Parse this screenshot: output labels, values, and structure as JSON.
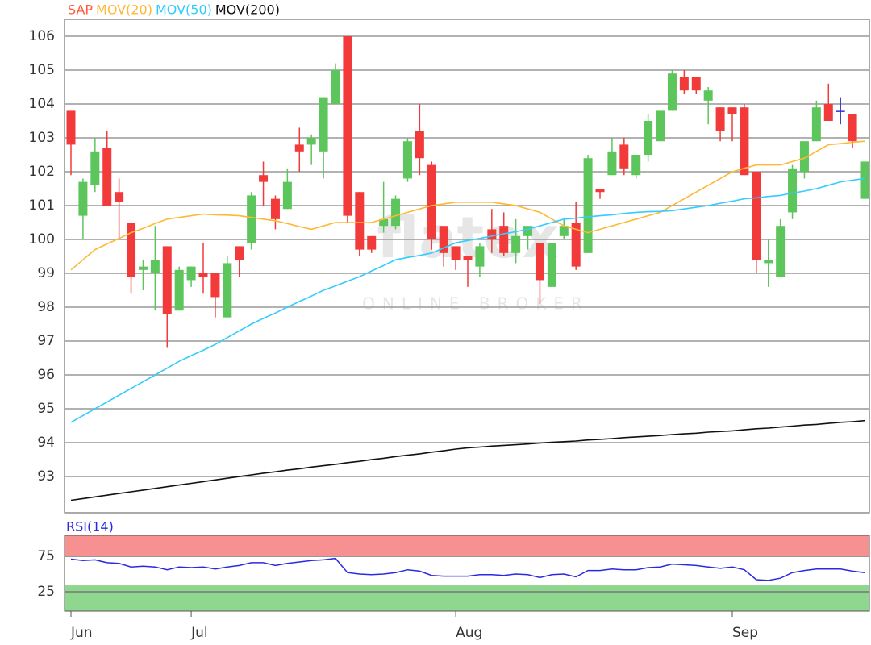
{
  "chart_data": [
    {
      "type": "candlestick",
      "watermark": {
        "logo": "flatex",
        "tagline": "ONLINE BROKER"
      },
      "up_color": "#5cc65c",
      "down_color": "#f23a3a",
      "flat_color": "#3333cc",
      "ylim": [
        91.93,
        106.5
      ],
      "yticks": [
        93,
        94,
        95,
        96,
        97,
        98,
        99,
        100,
        101,
        102,
        103,
        104,
        105,
        106
      ],
      "grid": true,
      "series": [
        {
          "name": "SAP",
          "type": "candlestick",
          "color": "#ff5a3c",
          "open": [
            103.8,
            100.7,
            101.6,
            102.7,
            101.4,
            100.5,
            99.1,
            99.0,
            99.8,
            97.9,
            98.8,
            99.0,
            99.0,
            97.7,
            99.8,
            99.9,
            101.9,
            101.2,
            100.9,
            102.8,
            102.8,
            102.6,
            104.0,
            106.0,
            101.4,
            100.1,
            100.4,
            100.4,
            101.8,
            103.2,
            102.2,
            100.4,
            99.8,
            99.5,
            99.2,
            100.3,
            100.4,
            99.6,
            100.1,
            99.9,
            98.6,
            100.1,
            100.5,
            99.6,
            101.5,
            101.9,
            102.8,
            101.9,
            102.5,
            102.9,
            103.8,
            104.8,
            104.8,
            104.1,
            103.9,
            103.9,
            103.9,
            102.0,
            99.3,
            98.9,
            100.8,
            102.0,
            102.9,
            104.0,
            103.8,
            103.7,
            101.2
          ],
          "high": [
            103.8,
            101.8,
            103.0,
            103.2,
            101.8,
            100.5,
            99.4,
            100.4,
            99.8,
            99.2,
            99.2,
            99.9,
            99.0,
            99.5,
            99.8,
            101.4,
            102.3,
            101.3,
            102.1,
            103.3,
            103.1,
            104.2,
            105.2,
            106.0,
            101.4,
            100.1,
            101.7,
            101.3,
            103.0,
            104.0,
            102.3,
            100.4,
            99.8,
            99.5,
            99.9,
            100.9,
            100.8,
            100.6,
            100.4,
            99.9,
            99.9,
            100.6,
            101.1,
            102.5,
            101.5,
            103.0,
            103.0,
            102.5,
            103.7,
            103.8,
            105.0,
            105.0,
            104.8,
            104.5,
            103.9,
            103.9,
            104.0,
            102.0,
            100.0,
            100.6,
            102.2,
            102.9,
            104.1,
            104.6,
            104.2,
            103.7,
            102.3
          ],
          "low": [
            101.9,
            100.0,
            101.4,
            101.0,
            100.0,
            98.4,
            98.5,
            97.9,
            96.8,
            97.9,
            98.6,
            98.4,
            97.7,
            97.7,
            98.9,
            99.7,
            101.0,
            100.3,
            100.9,
            102.0,
            102.2,
            101.8,
            104.0,
            100.5,
            99.5,
            99.6,
            100.2,
            100.3,
            101.7,
            101.9,
            99.7,
            99.2,
            99.1,
            98.6,
            98.9,
            99.6,
            99.5,
            99.3,
            99.7,
            98.1,
            98.6,
            100.0,
            99.1,
            99.6,
            101.2,
            101.9,
            101.9,
            101.8,
            102.3,
            102.9,
            103.8,
            104.3,
            104.3,
            103.4,
            102.9,
            102.9,
            101.9,
            99.0,
            98.6,
            98.9,
            100.6,
            101.8,
            102.9,
            103.5,
            103.4,
            102.7,
            101.2
          ],
          "close": [
            102.8,
            101.7,
            102.6,
            101.0,
            101.1,
            98.9,
            99.2,
            99.4,
            97.8,
            99.1,
            99.2,
            98.9,
            98.3,
            99.3,
            99.4,
            101.3,
            101.7,
            100.6,
            101.7,
            102.6,
            103.0,
            104.2,
            105.0,
            100.7,
            99.7,
            99.7,
            100.6,
            101.2,
            102.9,
            102.4,
            100.0,
            99.6,
            99.4,
            99.4,
            99.8,
            100.0,
            99.6,
            100.1,
            100.4,
            98.8,
            99.9,
            100.4,
            99.2,
            102.4,
            101.4,
            102.6,
            102.1,
            102.5,
            103.5,
            103.8,
            104.9,
            104.4,
            104.4,
            104.4,
            103.2,
            103.7,
            101.9,
            99.4,
            99.4,
            100.4,
            102.1,
            102.9,
            103.9,
            103.5,
            103.8,
            102.9,
            102.3
          ]
        },
        {
          "name": "MOV(20)",
          "color": "#ffb833",
          "values": [
            99.1,
            99.4,
            99.7,
            99.87,
            100.03,
            100.2,
            100.33,
            100.47,
            100.6,
            100.65,
            100.7,
            100.75,
            100.73,
            100.72,
            100.7,
            100.65,
            100.6,
            100.55,
            100.47,
            100.38,
            100.3,
            100.4,
            100.5,
            100.5,
            100.5,
            100.5,
            100.6,
            100.7,
            100.8,
            100.9,
            101.0,
            101.05,
            101.1,
            101.1,
            101.1,
            101.1,
            101.05,
            101.0,
            100.9,
            100.8,
            100.6,
            100.4,
            100.3,
            100.2,
            100.3,
            100.4,
            100.5,
            100.6,
            100.7,
            100.8,
            101.0,
            101.2,
            101.4,
            101.6,
            101.8,
            102.0,
            102.1,
            102.2,
            102.2,
            102.2,
            102.3,
            102.4,
            102.6,
            102.8,
            102.83,
            102.87,
            102.9
          ]
        },
        {
          "name": "MOV(50)",
          "color": "#33ccff",
          "values": [
            94.6,
            94.8,
            95.0,
            95.2,
            95.4,
            95.6,
            95.8,
            96.0,
            96.2,
            96.4,
            96.57,
            96.73,
            96.9,
            97.1,
            97.3,
            97.5,
            97.67,
            97.83,
            98.0,
            98.17,
            98.33,
            98.5,
            98.63,
            98.77,
            98.9,
            99.07,
            99.23,
            99.4,
            99.47,
            99.53,
            99.6,
            99.75,
            99.9,
            99.97,
            100.03,
            100.1,
            100.17,
            100.23,
            100.3,
            100.4,
            100.5,
            100.6,
            100.63,
            100.67,
            100.7,
            100.73,
            100.77,
            100.8,
            100.82,
            100.83,
            100.85,
            100.9,
            100.95,
            101.0,
            101.07,
            101.13,
            101.2,
            101.23,
            101.27,
            101.3,
            101.37,
            101.43,
            101.5,
            101.6,
            101.7,
            101.75,
            101.8
          ]
        },
        {
          "name": "MOV(200)",
          "color": "#111111",
          "values": [
            92.3,
            92.35,
            92.4,
            92.45,
            92.5,
            92.55,
            92.6,
            92.65,
            92.7,
            92.75,
            92.8,
            92.85,
            92.9,
            92.95,
            93.0,
            93.05,
            93.1,
            93.14,
            93.19,
            93.23,
            93.28,
            93.32,
            93.36,
            93.41,
            93.45,
            93.5,
            93.54,
            93.59,
            93.63,
            93.67,
            93.72,
            93.76,
            93.81,
            93.85,
            93.87,
            93.9,
            93.92,
            93.94,
            93.96,
            93.99,
            94.01,
            94.03,
            94.05,
            94.08,
            94.1,
            94.12,
            94.15,
            94.17,
            94.19,
            94.21,
            94.24,
            94.26,
            94.28,
            94.31,
            94.33,
            94.35,
            94.38,
            94.41,
            94.43,
            94.46,
            94.49,
            94.52,
            94.54,
            94.57,
            94.6,
            94.62,
            94.65
          ]
        }
      ]
    },
    {
      "type": "line",
      "ylim": [
        -2.3,
        104.5
      ],
      "yticks": [
        25,
        75
      ],
      "zones": [
        {
          "from": 75,
          "to": 104.5,
          "color": "#f79090"
        },
        {
          "from": -2.3,
          "to": 34,
          "color": "#8fd68f"
        }
      ],
      "xticks": [
        {
          "value": 0,
          "label": "Jun"
        },
        {
          "value": 10,
          "label": "Jul"
        },
        {
          "value": 32,
          "label": "Aug"
        },
        {
          "value": 55,
          "label": "Sep"
        }
      ],
      "series": [
        {
          "name": "RSI(14)",
          "color": "#2a2ae0",
          "values": [
            71,
            69,
            70,
            66,
            65,
            60,
            61,
            60,
            56,
            60,
            59,
            60,
            57,
            60,
            62,
            66,
            66,
            62,
            65,
            67,
            69,
            70,
            72,
            52,
            50,
            49,
            50,
            52,
            56,
            54,
            48,
            47,
            47,
            47,
            49,
            49,
            48,
            50,
            49,
            45,
            49,
            50,
            46,
            55,
            55,
            57,
            56,
            56,
            59,
            60,
            64,
            63,
            62,
            60,
            58,
            60,
            56,
            42,
            41,
            44,
            52,
            55,
            57,
            57,
            57,
            54,
            52
          ]
        }
      ]
    }
  ]
}
